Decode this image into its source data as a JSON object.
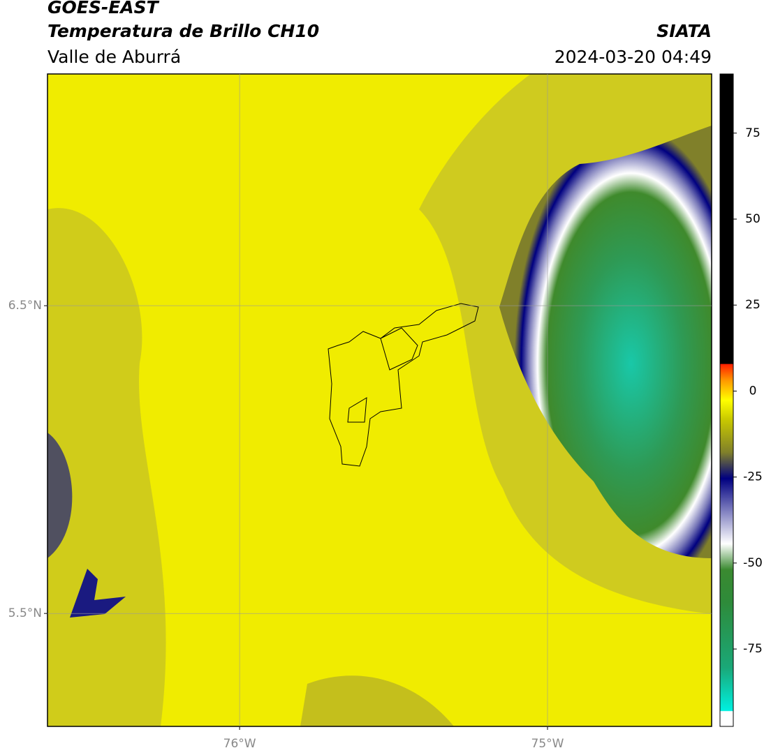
{
  "header": {
    "title": "GOES-EAST",
    "subtitle": "Temperatura de Brillo CH10",
    "region": "Valle de Aburrá",
    "source": "SIATA",
    "datetime": "2024-03-20 04:49"
  },
  "map": {
    "latlim": [
      5.133,
      7.253
    ],
    "lonlim": [
      -76.624,
      -74.467
    ],
    "lat_ticks": [
      {
        "value": 6.5,
        "label": "6.5°N"
      },
      {
        "value": 5.5,
        "label": "5.5°N"
      }
    ],
    "lon_ticks": [
      {
        "value": -76,
        "label": "76°W"
      },
      {
        "value": -75,
        "label": "75°W"
      }
    ]
  },
  "colorbar": {
    "lim": [
      -97.5,
      92.2
    ],
    "ticks": [
      75,
      50,
      25,
      0,
      -25,
      -50,
      -75
    ]
  }
}
